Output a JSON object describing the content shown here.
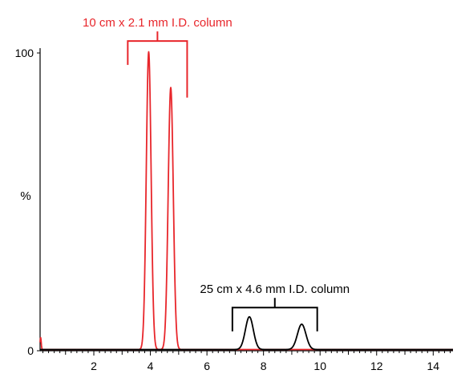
{
  "chart_data": {
    "type": "line",
    "title": "",
    "xlabel": "",
    "ylabel": "%",
    "xlim": [
      0.1,
      14.7
    ],
    "ylim": [
      0,
      100
    ],
    "x_ticks": [
      2,
      4,
      6,
      8,
      10,
      12,
      14
    ],
    "y_ticks": [
      0,
      100
    ],
    "x_tick_labels": [
      "2",
      "4",
      "6",
      "8",
      "10",
      "12",
      "14"
    ],
    "y_tick_labels": [
      "0",
      "100"
    ],
    "grid": false,
    "series": [
      {
        "name": "",
        "color": "#e8262b",
        "peaks": [
          {
            "rt": 0.12,
            "height": 4,
            "sigma": 0.02
          },
          {
            "rt": 3.94,
            "height": 100,
            "sigma": 0.085
          },
          {
            "rt": 4.72,
            "height": 88,
            "sigma": 0.09
          }
        ]
      },
      {
        "name": "",
        "color": "#000000",
        "peaks": [
          {
            "rt": 7.5,
            "height": 11,
            "sigma": 0.14
          },
          {
            "rt": 9.35,
            "height": 8.5,
            "sigma": 0.15
          }
        ]
      }
    ],
    "annotations": [
      {
        "text": "10 cm x 2.1 mm I.D. column",
        "color": "#e8262b",
        "x_from": 3.2,
        "x_to": 5.3,
        "y_left": 96,
        "y_right": 85,
        "y_top": 104
      },
      {
        "text": "25 cm x 4.6 mm I.D. column",
        "color": "#000000",
        "x_from": 6.9,
        "x_to": 9.9,
        "y_left": 6.5,
        "y_right": 6.5,
        "y_top": 14.5
      }
    ]
  }
}
